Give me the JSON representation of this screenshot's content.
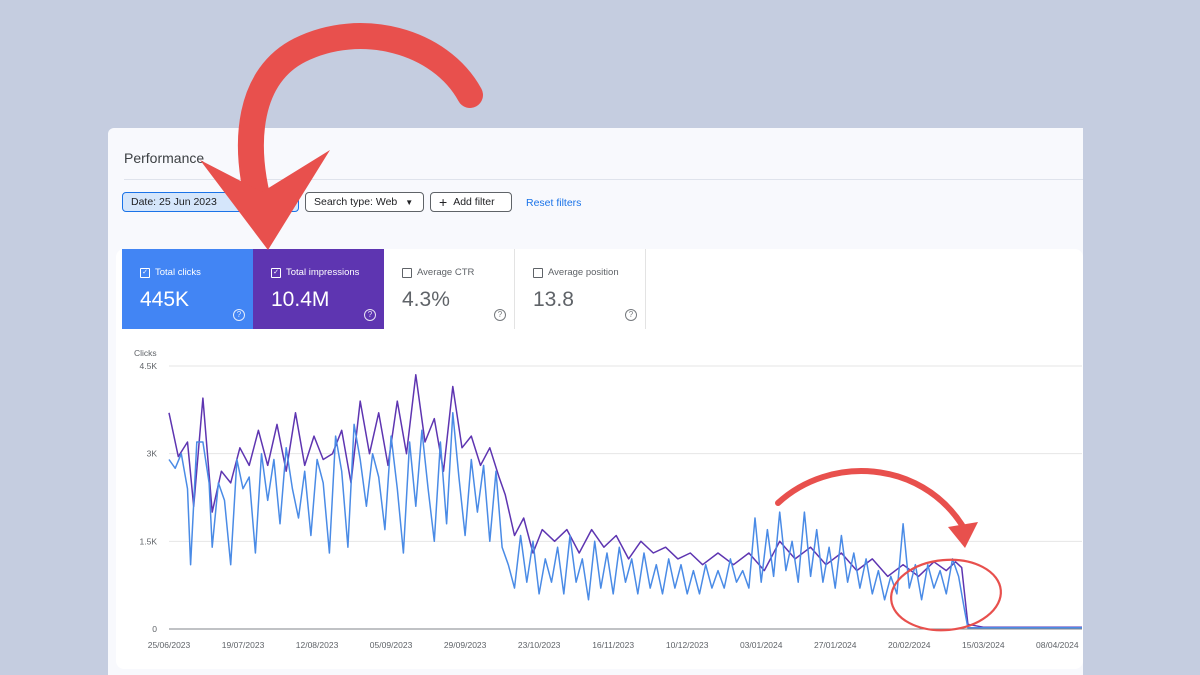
{
  "header": {
    "title": "Performance"
  },
  "toolbar": {
    "date_chip": "Date: 25 Jun 2023",
    "search_type": "Search type: Web",
    "add_filter": "Add filter",
    "reset_filters": "Reset filters"
  },
  "metrics": [
    {
      "label": "Total clicks",
      "value": "445K",
      "checked": true,
      "color": "#4285f4"
    },
    {
      "label": "Total impressions",
      "value": "10.4M",
      "checked": true,
      "color": "#5e35b1"
    },
    {
      "label": "Average CTR",
      "value": "4.3%",
      "checked": false
    },
    {
      "label": "Average position",
      "value": "13.8",
      "checked": false
    }
  ],
  "annotation_color": "#e8504d",
  "chart_data": {
    "type": "line",
    "ylabel": "Clicks",
    "ylim": [
      0,
      4500
    ],
    "yticks": [
      "0",
      "1.5K",
      "3K",
      "4.5K"
    ],
    "ytick_values": [
      0,
      1500,
      3000,
      4500
    ],
    "x_start": "2023-06-25",
    "x_end": "2024-04-16",
    "xticks": [
      "25/06/2023",
      "19/07/2023",
      "12/08/2023",
      "05/09/2023",
      "29/09/2023",
      "23/10/2023",
      "16/11/2023",
      "10/12/2023",
      "03/01/2024",
      "27/01/2024",
      "20/02/2024",
      "15/03/2024",
      "08/04/2024"
    ],
    "xtick_dates": [
      "2023-06-25",
      "2023-07-19",
      "2023-08-12",
      "2023-09-05",
      "2023-09-29",
      "2023-10-23",
      "2023-11-16",
      "2023-12-10",
      "2024-01-03",
      "2024-01-27",
      "2024-02-20",
      "2024-03-15",
      "2024-04-08"
    ],
    "grid": true,
    "series": [
      {
        "color": "#5e35b1",
        "points": [
          [
            "2023-06-25",
            3700
          ],
          [
            "2023-06-28",
            2950
          ],
          [
            "2023-07-01",
            3200
          ],
          [
            "2023-07-03",
            2100
          ],
          [
            "2023-07-06",
            3950
          ],
          [
            "2023-07-09",
            2000
          ],
          [
            "2023-07-12",
            2700
          ],
          [
            "2023-07-15",
            2500
          ],
          [
            "2023-07-18",
            3100
          ],
          [
            "2023-07-21",
            2800
          ],
          [
            "2023-07-24",
            3400
          ],
          [
            "2023-07-27",
            2800
          ],
          [
            "2023-07-30",
            3500
          ],
          [
            "2023-08-02",
            2700
          ],
          [
            "2023-08-05",
            3700
          ],
          [
            "2023-08-08",
            2800
          ],
          [
            "2023-08-11",
            3300
          ],
          [
            "2023-08-14",
            2900
          ],
          [
            "2023-08-17",
            3000
          ],
          [
            "2023-08-20",
            3400
          ],
          [
            "2023-08-23",
            2500
          ],
          [
            "2023-08-26",
            3900
          ],
          [
            "2023-08-29",
            3000
          ],
          [
            "2023-09-01",
            3700
          ],
          [
            "2023-09-04",
            2800
          ],
          [
            "2023-09-07",
            3900
          ],
          [
            "2023-09-10",
            3000
          ],
          [
            "2023-09-13",
            4350
          ],
          [
            "2023-09-16",
            3200
          ],
          [
            "2023-09-19",
            3600
          ],
          [
            "2023-09-22",
            2700
          ],
          [
            "2023-09-25",
            4150
          ],
          [
            "2023-09-28",
            3100
          ],
          [
            "2023-10-01",
            3300
          ],
          [
            "2023-10-04",
            2800
          ],
          [
            "2023-10-07",
            3100
          ],
          [
            "2023-10-10",
            2600
          ],
          [
            "2023-10-12",
            2300
          ],
          [
            "2023-10-15",
            1600
          ],
          [
            "2023-10-18",
            1900
          ],
          [
            "2023-10-21",
            1300
          ],
          [
            "2023-10-24",
            1700
          ],
          [
            "2023-10-28",
            1500
          ],
          [
            "2023-11-01",
            1700
          ],
          [
            "2023-11-05",
            1300
          ],
          [
            "2023-11-09",
            1700
          ],
          [
            "2023-11-13",
            1400
          ],
          [
            "2023-11-17",
            1600
          ],
          [
            "2023-11-21",
            1200
          ],
          [
            "2023-11-25",
            1500
          ],
          [
            "2023-11-29",
            1300
          ],
          [
            "2023-12-03",
            1400
          ],
          [
            "2023-12-07",
            1200
          ],
          [
            "2023-12-11",
            1300
          ],
          [
            "2023-12-15",
            1100
          ],
          [
            "2023-12-20",
            1300
          ],
          [
            "2023-12-25",
            1100
          ],
          [
            "2023-12-30",
            1300
          ],
          [
            "2024-01-04",
            1000
          ],
          [
            "2024-01-09",
            1500
          ],
          [
            "2024-01-14",
            1200
          ],
          [
            "2024-01-19",
            1400
          ],
          [
            "2024-01-24",
            1100
          ],
          [
            "2024-01-29",
            1300
          ],
          [
            "2024-02-03",
            1000
          ],
          [
            "2024-02-08",
            1200
          ],
          [
            "2024-02-13",
            900
          ],
          [
            "2024-02-18",
            1100
          ],
          [
            "2024-02-23",
            900
          ],
          [
            "2024-02-28",
            1150
          ],
          [
            "2024-03-03",
            1000
          ],
          [
            "2024-03-06",
            1150
          ],
          [
            "2024-03-08",
            1050
          ],
          [
            "2024-03-10",
            80
          ],
          [
            "2024-03-15",
            30
          ],
          [
            "2024-04-16",
            30
          ]
        ]
      },
      {
        "color": "#4a8be6",
        "points": [
          [
            "2023-06-25",
            2900
          ],
          [
            "2023-06-27",
            2750
          ],
          [
            "2023-06-29",
            3000
          ],
          [
            "2023-07-01",
            2400
          ],
          [
            "2023-07-02",
            1100
          ],
          [
            "2023-07-04",
            3200
          ],
          [
            "2023-07-06",
            3200
          ],
          [
            "2023-07-08",
            2500
          ],
          [
            "2023-07-09",
            1400
          ],
          [
            "2023-07-11",
            2500
          ],
          [
            "2023-07-13",
            2200
          ],
          [
            "2023-07-15",
            1100
          ],
          [
            "2023-07-17",
            2900
          ],
          [
            "2023-07-19",
            2400
          ],
          [
            "2023-07-21",
            2600
          ],
          [
            "2023-07-23",
            1300
          ],
          [
            "2023-07-25",
            3000
          ],
          [
            "2023-07-27",
            2200
          ],
          [
            "2023-07-29",
            2900
          ],
          [
            "2023-07-31",
            1800
          ],
          [
            "2023-08-02",
            3100
          ],
          [
            "2023-08-04",
            2400
          ],
          [
            "2023-08-06",
            1900
          ],
          [
            "2023-08-08",
            2700
          ],
          [
            "2023-08-10",
            1600
          ],
          [
            "2023-08-12",
            2900
          ],
          [
            "2023-08-14",
            2500
          ],
          [
            "2023-08-16",
            1300
          ],
          [
            "2023-08-18",
            3300
          ],
          [
            "2023-08-20",
            2700
          ],
          [
            "2023-08-22",
            1400
          ],
          [
            "2023-08-24",
            3500
          ],
          [
            "2023-08-26",
            2900
          ],
          [
            "2023-08-28",
            2100
          ],
          [
            "2023-08-30",
            3000
          ],
          [
            "2023-09-01",
            2600
          ],
          [
            "2023-09-03",
            1700
          ],
          [
            "2023-09-05",
            3300
          ],
          [
            "2023-09-07",
            2400
          ],
          [
            "2023-09-09",
            1300
          ],
          [
            "2023-09-11",
            3200
          ],
          [
            "2023-09-13",
            2100
          ],
          [
            "2023-09-15",
            3400
          ],
          [
            "2023-09-17",
            2400
          ],
          [
            "2023-09-19",
            1500
          ],
          [
            "2023-09-21",
            3200
          ],
          [
            "2023-09-23",
            1800
          ],
          [
            "2023-09-25",
            3700
          ],
          [
            "2023-09-27",
            2600
          ],
          [
            "2023-09-29",
            1600
          ],
          [
            "2023-10-01",
            2900
          ],
          [
            "2023-10-03",
            2000
          ],
          [
            "2023-10-05",
            2800
          ],
          [
            "2023-10-07",
            1500
          ],
          [
            "2023-10-09",
            2700
          ],
          [
            "2023-10-11",
            1400
          ],
          [
            "2023-10-13",
            1100
          ],
          [
            "2023-10-15",
            700
          ],
          [
            "2023-10-17",
            1600
          ],
          [
            "2023-10-19",
            800
          ],
          [
            "2023-10-21",
            1500
          ],
          [
            "2023-10-23",
            600
          ],
          [
            "2023-10-25",
            1200
          ],
          [
            "2023-10-27",
            800
          ],
          [
            "2023-10-29",
            1400
          ],
          [
            "2023-10-31",
            600
          ],
          [
            "2023-11-02",
            1600
          ],
          [
            "2023-11-04",
            800
          ],
          [
            "2023-11-06",
            1200
          ],
          [
            "2023-11-08",
            500
          ],
          [
            "2023-11-10",
            1500
          ],
          [
            "2023-11-12",
            700
          ],
          [
            "2023-11-14",
            1300
          ],
          [
            "2023-11-16",
            600
          ],
          [
            "2023-11-18",
            1400
          ],
          [
            "2023-11-20",
            800
          ],
          [
            "2023-11-22",
            1200
          ],
          [
            "2023-11-24",
            600
          ],
          [
            "2023-11-26",
            1300
          ],
          [
            "2023-11-28",
            700
          ],
          [
            "2023-11-30",
            1100
          ],
          [
            "2023-12-02",
            600
          ],
          [
            "2023-12-04",
            1200
          ],
          [
            "2023-12-06",
            700
          ],
          [
            "2023-12-08",
            1100
          ],
          [
            "2023-12-10",
            600
          ],
          [
            "2023-12-12",
            1000
          ],
          [
            "2023-12-14",
            600
          ],
          [
            "2023-12-16",
            1100
          ],
          [
            "2023-12-18",
            700
          ],
          [
            "2023-12-20",
            1000
          ],
          [
            "2023-12-22",
            700
          ],
          [
            "2023-12-24",
            1200
          ],
          [
            "2023-12-26",
            800
          ],
          [
            "2023-12-28",
            1000
          ],
          [
            "2023-12-30",
            700
          ],
          [
            "2024-01-01",
            1900
          ],
          [
            "2024-01-03",
            800
          ],
          [
            "2024-01-05",
            1700
          ],
          [
            "2024-01-07",
            900
          ],
          [
            "2024-01-09",
            2000
          ],
          [
            "2024-01-11",
            1000
          ],
          [
            "2024-01-13",
            1500
          ],
          [
            "2024-01-15",
            800
          ],
          [
            "2024-01-17",
            2000
          ],
          [
            "2024-01-19",
            900
          ],
          [
            "2024-01-21",
            1700
          ],
          [
            "2024-01-23",
            800
          ],
          [
            "2024-01-25",
            1400
          ],
          [
            "2024-01-27",
            700
          ],
          [
            "2024-01-29",
            1600
          ],
          [
            "2024-01-31",
            800
          ],
          [
            "2024-02-02",
            1300
          ],
          [
            "2024-02-04",
            700
          ],
          [
            "2024-02-06",
            1200
          ],
          [
            "2024-02-08",
            600
          ],
          [
            "2024-02-10",
            1000
          ],
          [
            "2024-02-12",
            500
          ],
          [
            "2024-02-14",
            900
          ],
          [
            "2024-02-16",
            600
          ],
          [
            "2024-02-18",
            1800
          ],
          [
            "2024-02-20",
            700
          ],
          [
            "2024-02-22",
            1100
          ],
          [
            "2024-02-24",
            500
          ],
          [
            "2024-02-26",
            1100
          ],
          [
            "2024-02-28",
            700
          ],
          [
            "2024-03-01",
            1000
          ],
          [
            "2024-03-03",
            600
          ],
          [
            "2024-03-05",
            1200
          ],
          [
            "2024-03-07",
            900
          ],
          [
            "2024-03-09",
            300
          ],
          [
            "2024-03-10",
            20
          ],
          [
            "2024-03-15",
            20
          ],
          [
            "2024-04-16",
            20
          ]
        ]
      }
    ]
  }
}
